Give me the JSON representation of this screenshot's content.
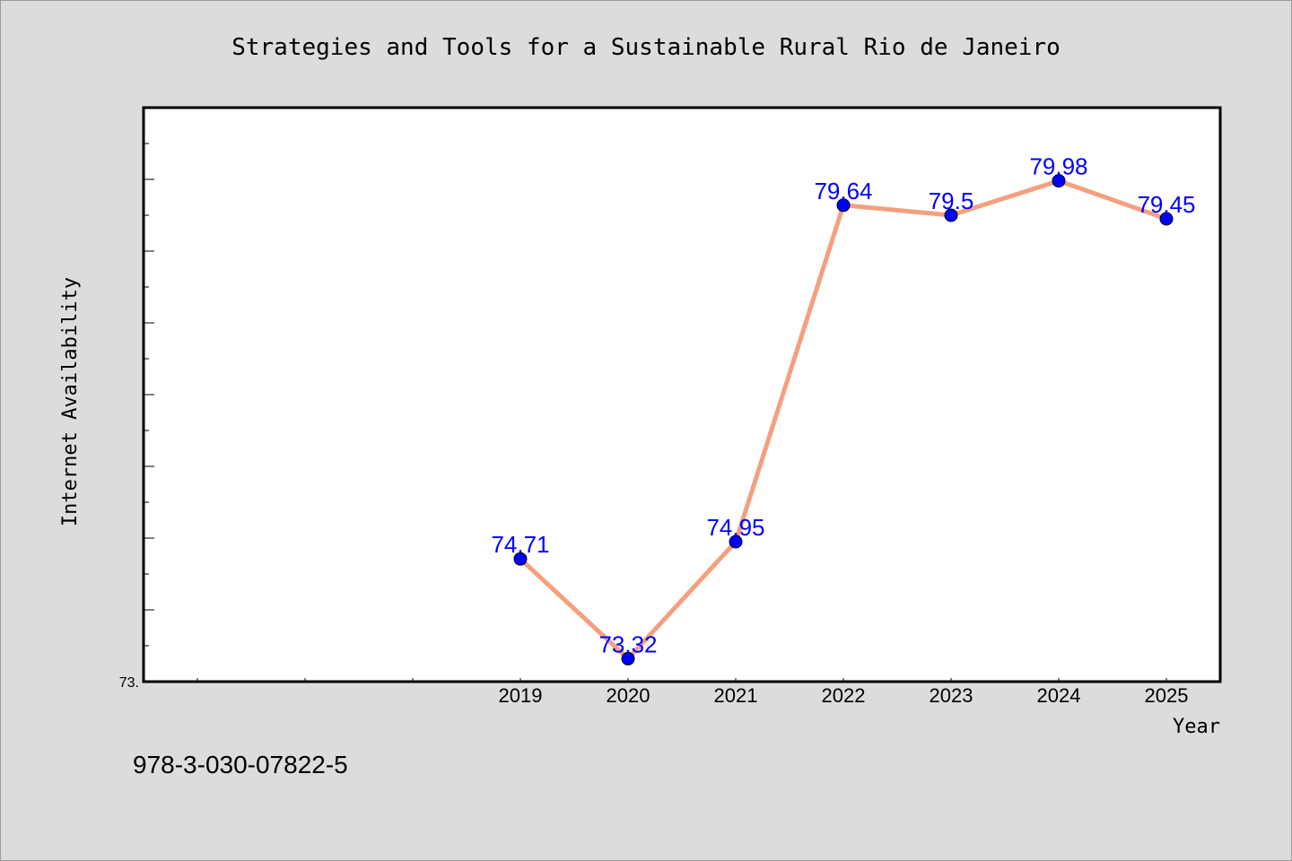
{
  "colors": {
    "background": "#dcdcdc",
    "plot_background": "#ffffff",
    "line": "#f4a07f",
    "marker": "#0000ff",
    "data_label": "#0000ff"
  },
  "isbn": "978-3-030-07822-5",
  "chart_data": {
    "type": "line",
    "title": "Strategies and Tools for a Sustainable Rural Rio de Janeiro",
    "xlabel": "Year",
    "ylabel": "Internet Availability",
    "categories": [
      "2019",
      "2020",
      "2021",
      "2022",
      "2023",
      "2024",
      "2025"
    ],
    "series": [
      {
        "values": [
          74.71,
          73.32,
          74.95,
          79.64,
          79.5,
          79.98,
          79.45
        ]
      }
    ],
    "data_labels": [
      "74.71",
      "73.32",
      "74.95",
      "79.64",
      "79.5",
      "79.98",
      "79.45"
    ],
    "ylim": [
      73,
      81
    ],
    "y_tick_labels": [
      "73."
    ],
    "x_category_slots": 10,
    "grid": false,
    "legend": "none"
  }
}
